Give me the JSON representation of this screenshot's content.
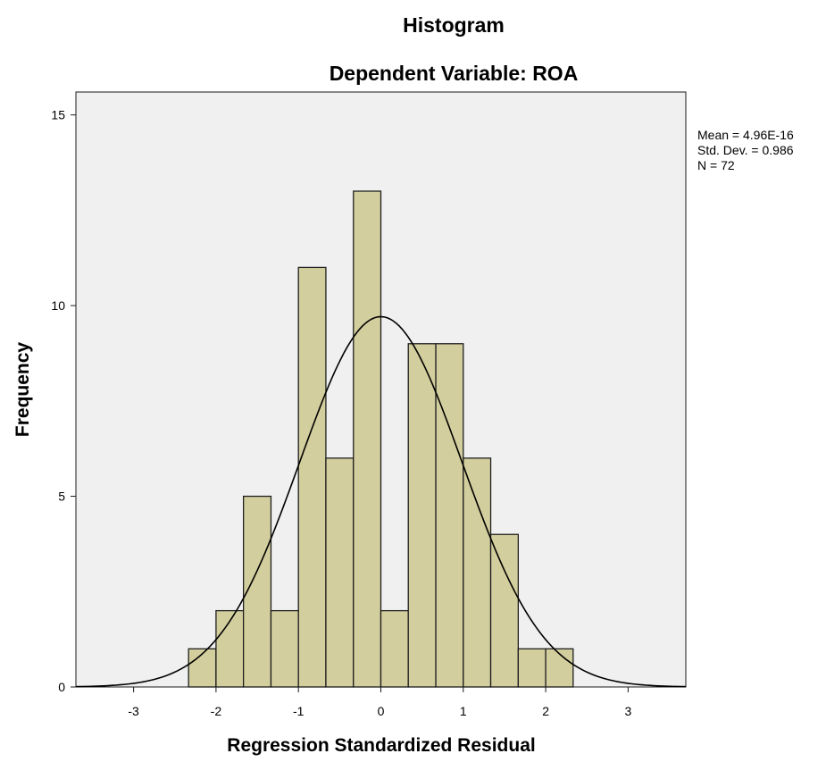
{
  "chart_data": {
    "type": "bar",
    "title": "Histogram",
    "subtitle": "Dependent Variable: ROA",
    "xlabel": "Regression Standardized Residual",
    "ylabel": "Frequency",
    "xlim": [
      -3.7,
      3.7
    ],
    "ylim": [
      0,
      15.6
    ],
    "x_ticks": [
      -3,
      -2,
      -1,
      0,
      1,
      2,
      3
    ],
    "y_ticks": [
      0,
      5,
      10,
      15
    ],
    "bins": [
      {
        "start": -2.333,
        "end": -2.0,
        "count": 1
      },
      {
        "start": -2.0,
        "end": -1.667,
        "count": 2
      },
      {
        "start": -1.667,
        "end": -1.333,
        "count": 5
      },
      {
        "start": -1.333,
        "end": -1.0,
        "count": 2
      },
      {
        "start": -1.0,
        "end": -0.667,
        "count": 11
      },
      {
        "start": -0.667,
        "end": -0.333,
        "count": 6
      },
      {
        "start": -0.333,
        "end": 0.0,
        "count": 13
      },
      {
        "start": 0.0,
        "end": 0.333,
        "count": 2
      },
      {
        "start": 0.333,
        "end": 0.667,
        "count": 9
      },
      {
        "start": 0.667,
        "end": 1.0,
        "count": 9
      },
      {
        "start": 1.0,
        "end": 1.333,
        "count": 6
      },
      {
        "start": 1.333,
        "end": 1.667,
        "count": 4
      },
      {
        "start": 1.667,
        "end": 2.0,
        "count": 1
      },
      {
        "start": 2.0,
        "end": 2.333,
        "count": 1
      }
    ],
    "normal_curve": {
      "mean": 0,
      "sd": 0.986,
      "n": 72,
      "bin_width": 0.3333
    },
    "grid": false,
    "stats": {
      "mean_label": "Mean = 4.96E-16",
      "sd_label": "Std. Dev. = 0.986",
      "n_label": "N = 72"
    },
    "colors": {
      "plot_background": "#f0f0f0",
      "bar_fill": "#d3ce9d",
      "bar_stroke": "#1f1f1f",
      "curve": "#000000"
    }
  }
}
